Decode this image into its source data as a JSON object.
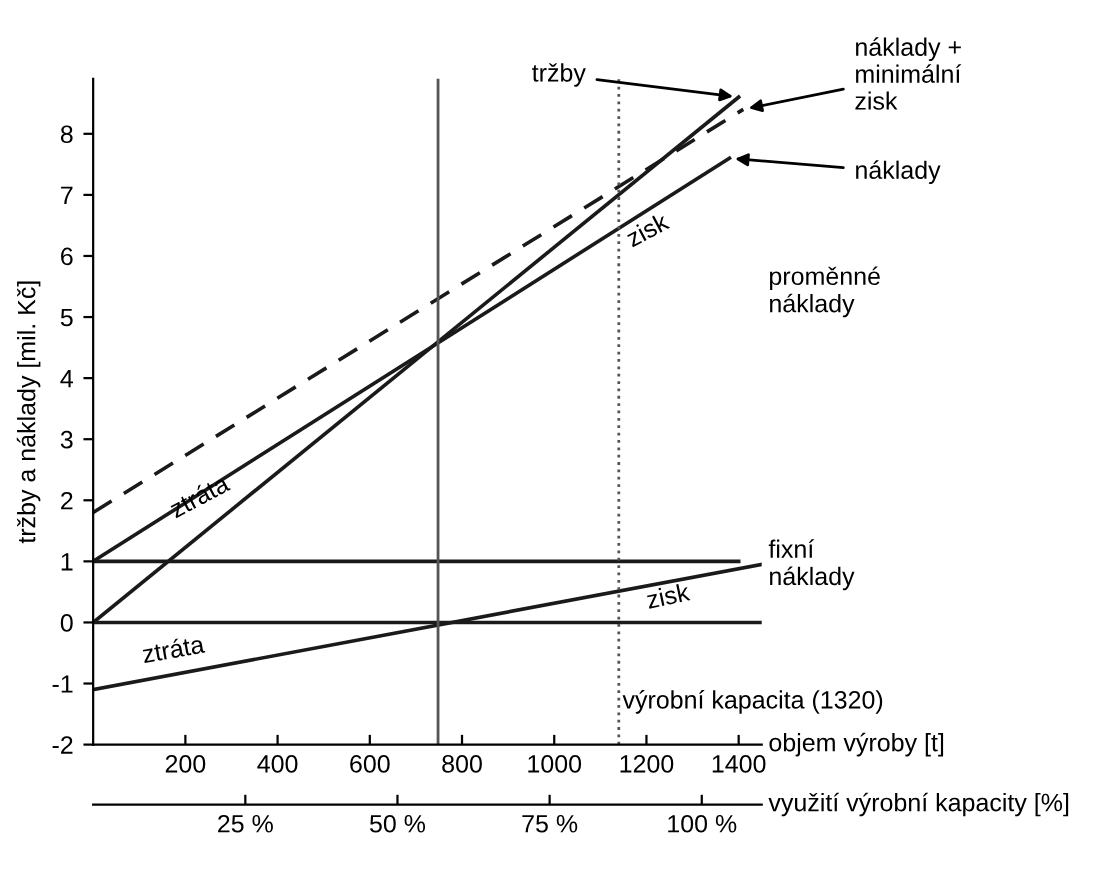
{
  "chart_data": {
    "type": "line",
    "xlabel": "objem výroby [t]",
    "ylabel": "tržby a náklady [mil. Kč]",
    "x2label": "využití výrobní kapacity [%]",
    "series": [
      {
        "name": "tržby",
        "color": "#1a1a1a",
        "x": [
          0,
          1400
        ],
        "values": [
          0,
          8.6
        ]
      },
      {
        "name": "náklady + minimální zisk",
        "color": "#1a1a1a",
        "line_style": "dashed",
        "x": [
          0,
          1410
        ],
        "values": [
          1.8,
          8.4
        ]
      },
      {
        "name": "náklady",
        "color": "#1a1a1a",
        "x": [
          0,
          1380
        ],
        "values": [
          1,
          7.6
        ]
      },
      {
        "color": "#1a1a1a",
        "x": [
          0,
          1400
        ],
        "values": [
          1,
          1
        ]
      },
      {
        "color": "#1a1a1a",
        "x": [
          0,
          1450
        ],
        "values": [
          -1.1,
          0.95
        ]
      },
      {
        "color": "#1a1a1a",
        "x": [
          0,
          1450
        ],
        "values": [
          0,
          0
        ]
      }
    ],
    "ref_lines": [
      {
        "axis": "x",
        "value": 748,
        "color": "#555555",
        "line_style": "solid"
      },
      {
        "axis": "x",
        "value": 1140,
        "label": "výrobní kapacita (1320)",
        "color": "#555555",
        "line_style": "dotted"
      }
    ],
    "annotations": [
      "ztráta",
      "ztráta",
      "zisk",
      "zisk",
      "proměnné náklady",
      "fixní náklady"
    ],
    "xlim": [
      0,
      1450
    ],
    "ylim": [
      -2,
      8.9
    ],
    "x2lim": [
      0,
      109.85
    ],
    "xticks": [
      200,
      400,
      600,
      800,
      1000,
      1200,
      1400
    ],
    "yticks": [
      -2,
      -1,
      0,
      1,
      2,
      3,
      4,
      5,
      6,
      7,
      8
    ],
    "x2ticks": [
      {
        "value": 25,
        "label": "25 %"
      },
      {
        "value": 50,
        "label": "50 %"
      },
      {
        "value": 75,
        "label": "75 %"
      },
      {
        "value": 100,
        "label": "100 %"
      }
    ],
    "grid": false,
    "legend": false,
    "marker": "none"
  }
}
